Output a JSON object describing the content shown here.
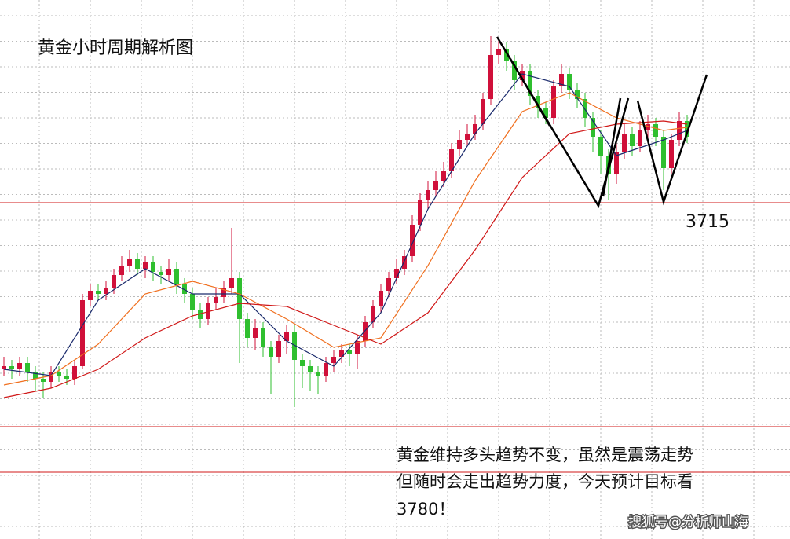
{
  "chart_data": {
    "type": "candlestick",
    "title": "黄金小时周期解析图",
    "ylim": [
      3608,
      3779.5
    ],
    "up_color": "#d0103a",
    "down_color": "#2fbf2f",
    "open": [
      3662,
      3663,
      3662,
      3664,
      3661,
      3659,
      3658,
      3661,
      3660,
      3659,
      3663,
      3684,
      3687,
      3686,
      3688,
      3692,
      3695,
      3697,
      3694,
      3696,
      3693,
      3692,
      3694,
      3689,
      3686,
      3681,
      3678,
      3683,
      3685,
      3688,
      3691,
      3678,
      3672,
      3675,
      3669,
      3666,
      3671,
      3674,
      3665,
      3663,
      3661,
      3660,
      3664,
      3666,
      3668,
      3667,
      3671,
      3677,
      3682,
      3687,
      3691,
      3694,
      3698,
      3708,
      3716,
      3719,
      3722,
      3725,
      3732,
      3735,
      3737,
      3740,
      3748,
      3762,
      3764,
      3760,
      3754,
      3757,
      3749,
      3745,
      3742,
      3752,
      3756,
      3751,
      3748,
      3742,
      3736,
      3730,
      3724,
      3731,
      3737,
      3733,
      3738,
      3740,
      3736,
      3726,
      3735,
      3741
    ],
    "high": [
      3666,
      3665,
      3666,
      3666,
      3663,
      3661,
      3663,
      3663,
      3662,
      3665,
      3686,
      3689,
      3689,
      3690,
      3694,
      3698,
      3700,
      3699,
      3698,
      3698,
      3695,
      3697,
      3696,
      3691,
      3688,
      3683,
      3685,
      3688,
      3690,
      3707,
      3693,
      3680,
      3678,
      3677,
      3671,
      3673,
      3676,
      3676,
      3667,
      3665,
      3663,
      3666,
      3668,
      3670,
      3670,
      3673,
      3679,
      3684,
      3689,
      3693,
      3697,
      3700,
      3711,
      3718,
      3722,
      3725,
      3728,
      3734,
      3738,
      3740,
      3743,
      3750,
      3768,
      3767,
      3766,
      3762,
      3759,
      3759,
      3751,
      3747,
      3754,
      3759,
      3758,
      3753,
      3750,
      3744,
      3738,
      3732,
      3734,
      3740,
      3739,
      3741,
      3743,
      3742,
      3738,
      3737,
      3744,
      3743
    ],
    "low": [
      3660,
      3659,
      3660,
      3658,
      3655,
      3653,
      3656,
      3658,
      3657,
      3657,
      3662,
      3682,
      3684,
      3684,
      3686,
      3690,
      3693,
      3692,
      3691,
      3690,
      3689,
      3690,
      3686,
      3683,
      3678,
      3675,
      3676,
      3681,
      3683,
      3686,
      3664,
      3669,
      3668,
      3666,
      3654,
      3664,
      3667,
      3650,
      3656,
      3655,
      3654,
      3658,
      3661,
      3664,
      3663,
      3662,
      3669,
      3675,
      3680,
      3685,
      3689,
      3692,
      3696,
      3706,
      3713,
      3717,
      3720,
      3723,
      3730,
      3733,
      3735,
      3738,
      3746,
      3759,
      3757,
      3751,
      3752,
      3746,
      3742,
      3740,
      3740,
      3750,
      3748,
      3745,
      3739,
      3731,
      3724,
      3716,
      3721,
      3729,
      3730,
      3731,
      3735,
      3733,
      3719,
      3724,
      3733,
      3734
    ],
    "close": [
      3663,
      3662,
      3664,
      3661,
      3659,
      3658,
      3661,
      3660,
      3659,
      3663,
      3684,
      3687,
      3686,
      3688,
      3692,
      3695,
      3697,
      3694,
      3696,
      3693,
      3692,
      3694,
      3689,
      3686,
      3681,
      3678,
      3683,
      3685,
      3688,
      3691,
      3678,
      3672,
      3675,
      3669,
      3666,
      3671,
      3674,
      3665,
      3663,
      3661,
      3660,
      3664,
      3666,
      3668,
      3667,
      3671,
      3677,
      3682,
      3687,
      3691,
      3694,
      3698,
      3708,
      3716,
      3719,
      3722,
      3725,
      3732,
      3735,
      3737,
      3740,
      3748,
      3762,
      3764,
      3760,
      3754,
      3757,
      3749,
      3745,
      3742,
      3752,
      3756,
      3751,
      3748,
      3742,
      3736,
      3730,
      3724,
      3731,
      3737,
      3733,
      3738,
      3740,
      3736,
      3726,
      3735,
      3741,
      3736
    ],
    "averages": [
      {
        "color": "#1a2a6c",
        "x": [
          0,
          6,
          12,
          18,
          24,
          30,
          36,
          42,
          48,
          54,
          60,
          66,
          72,
          78,
          84,
          87
        ],
        "values": [
          3662,
          3660,
          3684,
          3694,
          3686,
          3686,
          3671,
          3663,
          3680,
          3713,
          3737,
          3756,
          3752,
          3730,
          3735,
          3738
        ]
      },
      {
        "color": "#f07020",
        "x": [
          0,
          6,
          12,
          18,
          24,
          30,
          36,
          42,
          48,
          54,
          60,
          66,
          72,
          78,
          84,
          87
        ],
        "values": [
          3657,
          3660,
          3670,
          3686,
          3690,
          3686,
          3678,
          3669,
          3672,
          3695,
          3722,
          3744,
          3750,
          3742,
          3738,
          3739
        ]
      },
      {
        "color": "#d01818",
        "x": [
          0,
          6,
          12,
          18,
          24,
          30,
          36,
          42,
          48,
          54,
          60,
          66,
          72,
          78,
          84,
          87
        ],
        "values": [
          3653,
          3656,
          3662,
          3672,
          3679,
          3683,
          3682,
          3676,
          3670,
          3680,
          3700,
          3723,
          3737,
          3740,
          3741,
          3740
        ]
      }
    ],
    "level": 3715,
    "level_label": "3715",
    "note": [
      "黄金维持多头趋势不变，虽然是震荡走势",
      "但随时会走出趋势力度，今天预计目标看",
      "3780！"
    ],
    "watermark": "搜狐号@分析师山海"
  }
}
